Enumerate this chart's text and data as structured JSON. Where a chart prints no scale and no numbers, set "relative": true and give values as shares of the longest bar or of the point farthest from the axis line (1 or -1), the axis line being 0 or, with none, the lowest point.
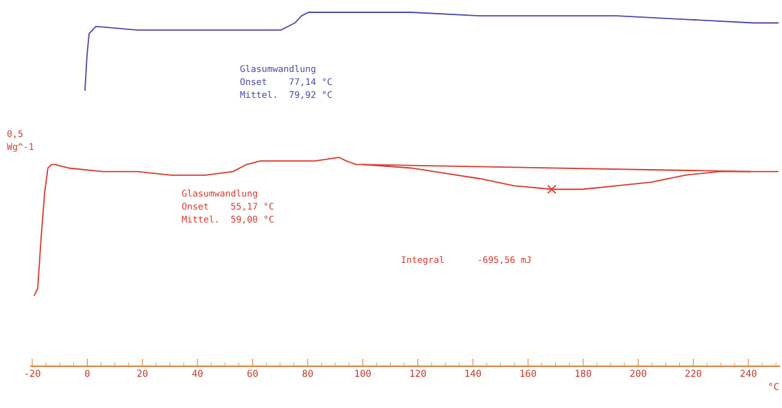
{
  "chart_data": {
    "type": "line",
    "relative": true,
    "xlabel": "°C",
    "xlim": [
      -20.5,
      251.2
    ],
    "xticks": [
      -20,
      0,
      20,
      40,
      60,
      80,
      100,
      120,
      140,
      160,
      180,
      200,
      220,
      240
    ],
    "series": [
      {
        "color": "#4a4aa8",
        "x": [
          -0.85,
          -0.1,
          0.65,
          1.9,
          3.1,
          18.1,
          42.9,
          62.8,
          70.3,
          72.8,
          75.3,
          77.8,
          80.3,
          92.7,
          117.6,
          142.5,
          167.3,
          192.2,
          217.1,
          242.0,
          250.7
        ],
        "values": [
          0.78,
          0.88,
          0.94,
          0.95,
          0.96,
          0.95,
          0.95,
          0.95,
          0.95,
          0.96,
          0.97,
          0.99,
          1.0,
          1.0,
          1.0,
          0.99,
          0.99,
          0.99,
          0.98,
          0.97,
          0.97
        ]
      },
      {
        "color": "#d9382e",
        "x": [
          -19.26,
          -18.0,
          -16.8,
          -15.5,
          -14.3,
          -13.0,
          -11.8,
          -6.8,
          5.6,
          18.1,
          30.5,
          42.9,
          52.9,
          57.8,
          62.8,
          72.8,
          82.7,
          91.5,
          94.0,
          97.7,
          100.2,
          117.6,
          142.5,
          154.9,
          168.6,
          179.8,
          192.2,
          204.7,
          217.1,
          229.5,
          240.7,
          250.7
        ],
        "values": [
          0.2,
          0.22,
          0.36,
          0.49,
          0.56,
          0.57,
          0.57,
          0.56,
          0.55,
          0.55,
          0.54,
          0.54,
          0.55,
          0.57,
          0.58,
          0.58,
          0.58,
          0.59,
          0.58,
          0.57,
          0.57,
          0.56,
          0.53,
          0.51,
          0.5,
          0.5,
          0.51,
          0.52,
          0.54,
          0.55,
          0.55,
          0.55
        ]
      },
      {
        "color": "#d9382e",
        "x": [
          100.2,
          240.7
        ],
        "values": [
          0.57,
          0.55
        ]
      },
      {
        "type": "scatter",
        "marker": "cross",
        "color": "#d9382e",
        "x": [
          168.6
        ],
        "values": [
          0.5
        ]
      }
    ],
    "annotations": [
      "Glasumwandlung\nOnset    77,14 °C\nMittel.  79,92 °C",
      "Glasumwandlung\nOnset    55,17 °C\nMittel.  59,00 °C",
      "Integral      -695,56 mJ",
      "0,5\nWg^-1"
    ]
  }
}
